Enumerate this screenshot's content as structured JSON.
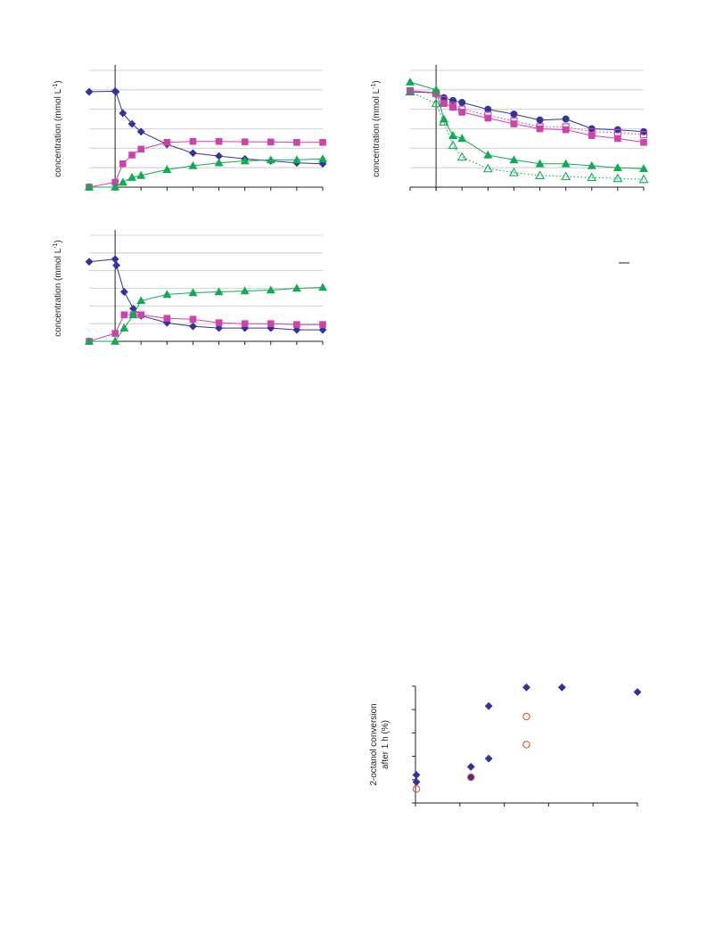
{
  "colors": {
    "blue": "#333399",
    "magenta": "#cc44aa",
    "green": "#11aa55",
    "orange": "#e05533",
    "grid": "#c8c8c8",
    "axis": "#222222"
  },
  "chart_data": [
    {
      "id": "chart-top-left",
      "type": "line",
      "ylabel": "concentration (mmol L",
      "ylabel_sup": "-1",
      "ylabel_suffix": ")",
      "xlim": [
        0,
        9
      ],
      "ylim": [
        0,
        6
      ],
      "grid": true,
      "vline_x": 1,
      "series": [
        {
          "marker": "diamond",
          "color": "blue",
          "filled": true,
          "dotted": false,
          "x": [
            0,
            1,
            1.03,
            1.3,
            1.65,
            2,
            3,
            4,
            5,
            6,
            7,
            8,
            9
          ],
          "y": [
            4.9,
            4.93,
            4.9,
            3.8,
            3.25,
            2.85,
            2.2,
            1.75,
            1.6,
            1.45,
            1.35,
            1.25,
            1.2
          ]
        },
        {
          "marker": "square",
          "color": "magenta",
          "filled": true,
          "dotted": false,
          "x": [
            0,
            1,
            1.3,
            1.65,
            2,
            3,
            4,
            5,
            6,
            7,
            8,
            9
          ],
          "y": [
            0,
            0.25,
            1.2,
            1.65,
            1.95,
            2.3,
            2.35,
            2.35,
            2.33,
            2.32,
            2.3,
            2.3
          ]
        },
        {
          "marker": "triangle",
          "color": "green",
          "filled": true,
          "dotted": false,
          "x": [
            0,
            1,
            1.3,
            1.65,
            2,
            3,
            4,
            5,
            6,
            7,
            8,
            9
          ],
          "y": [
            0,
            0,
            0.25,
            0.5,
            0.6,
            0.9,
            1.1,
            1.25,
            1.35,
            1.4,
            1.4,
            1.45
          ]
        }
      ]
    },
    {
      "id": "chart-top-right",
      "type": "line",
      "ylabel": "concentration (mmol L",
      "ylabel_sup": "-1",
      "ylabel_suffix": ")",
      "xlim": [
        0,
        9
      ],
      "ylim": [
        0,
        6
      ],
      "grid": true,
      "vline_x": 1,
      "series": [
        {
          "marker": "circle",
          "color": "blue",
          "filled": true,
          "dotted": false,
          "x": [
            0,
            1,
            1.3,
            1.65,
            2,
            3,
            4,
            5,
            6,
            7,
            8,
            9
          ],
          "y": [
            4.9,
            4.85,
            4.6,
            4.45,
            4.35,
            4.0,
            3.75,
            3.45,
            3.5,
            3.0,
            2.95,
            2.85
          ]
        },
        {
          "marker": "square",
          "color": "magenta",
          "filled": true,
          "dotted": false,
          "x": [
            0,
            1,
            1.3,
            1.65,
            2,
            3,
            4,
            5,
            6,
            7,
            8,
            9
          ],
          "y": [
            4.95,
            4.85,
            4.3,
            4.1,
            3.85,
            3.55,
            3.25,
            3.0,
            2.95,
            2.65,
            2.5,
            2.3
          ]
        },
        {
          "marker": "square",
          "color": "magenta",
          "filled": false,
          "dotted": true,
          "x": [
            0,
            1,
            1.3,
            1.65,
            2,
            3,
            4,
            5,
            6,
            7,
            8,
            9
          ],
          "y": [
            4.95,
            4.8,
            4.5,
            4.2,
            4.0,
            3.7,
            3.4,
            3.1,
            3.1,
            2.85,
            2.8,
            2.7
          ]
        },
        {
          "marker": "triangle",
          "color": "green",
          "filled": true,
          "dotted": false,
          "x": [
            0,
            1,
            1.3,
            1.65,
            2,
            3,
            4,
            5,
            6,
            7,
            8,
            9
          ],
          "y": [
            5.4,
            5.0,
            3.5,
            2.65,
            2.5,
            1.65,
            1.4,
            1.2,
            1.2,
            1.1,
            1.0,
            0.95
          ]
        },
        {
          "marker": "triangle",
          "color": "green",
          "filled": false,
          "dotted": true,
          "x": [
            0,
            1,
            1.3,
            1.65,
            2,
            3,
            4,
            5,
            6,
            7,
            8,
            9
          ],
          "y": [
            4.9,
            4.3,
            3.35,
            2.15,
            1.55,
            0.95,
            0.75,
            0.6,
            0.55,
            0.5,
            0.45,
            0.4
          ]
        }
      ]
    },
    {
      "id": "chart-middle-left",
      "type": "line",
      "ylabel": "concentration (mmol L",
      "ylabel_sup": "-1",
      "ylabel_suffix": ")",
      "xlim": [
        0,
        9
      ],
      "ylim": [
        0,
        6
      ],
      "grid": true,
      "vline_x": 1,
      "series": [
        {
          "marker": "diamond",
          "color": "blue",
          "filled": true,
          "dotted": false,
          "x": [
            0,
            1,
            1.05,
            1.35,
            1.7,
            2,
            3,
            4,
            5,
            6,
            7,
            8,
            9
          ],
          "y": [
            4.5,
            4.65,
            4.3,
            2.8,
            1.85,
            1.45,
            1.05,
            0.85,
            0.75,
            0.75,
            0.75,
            0.65,
            0.65
          ]
        },
        {
          "marker": "square",
          "color": "magenta",
          "filled": true,
          "dotted": false,
          "x": [
            0,
            1,
            1.35,
            1.7,
            2,
            3,
            4,
            5,
            6,
            7,
            8,
            9
          ],
          "y": [
            0,
            0.45,
            1.5,
            1.5,
            1.5,
            1.3,
            1.25,
            1.05,
            1.0,
            1.0,
            0.95,
            0.95
          ]
        },
        {
          "marker": "triangle",
          "color": "green",
          "filled": true,
          "dotted": false,
          "x": [
            0,
            1,
            1.35,
            1.7,
            2,
            3,
            4,
            5,
            6,
            7,
            8,
            9
          ],
          "y": [
            0,
            0,
            0.75,
            1.5,
            2.3,
            2.65,
            2.75,
            2.8,
            2.85,
            2.9,
            3.0,
            3.05
          ]
        }
      ]
    },
    {
      "id": "chart-bottom-right",
      "type": "scatter",
      "ylabel": "2-octanol conversion",
      "ylabel_line2": "after 1 h (%)",
      "xlim": [
        0,
        5
      ],
      "ylim": [
        0,
        100
      ],
      "grid": false,
      "series": [
        {
          "marker": "diamond",
          "color": "blue",
          "filled": true,
          "x": [
            0.02,
            0.02,
            1.25,
            1.25,
            1.65,
            1.65,
            2.5,
            3.3,
            5.0
          ],
          "y": [
            18,
            24,
            22,
            31,
            38,
            83,
            99,
            99,
            95
          ]
        },
        {
          "marker": "circle",
          "color": "orange",
          "filled": false,
          "x": [
            0.02,
            1.25,
            2.5,
            2.5
          ],
          "y": [
            12,
            22,
            50,
            74
          ]
        }
      ]
    }
  ]
}
